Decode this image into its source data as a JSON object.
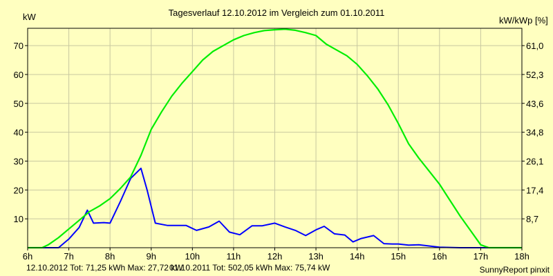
{
  "chart_data": {
    "type": "line",
    "title": "Tagesverlauf 12.10.2012 im Vergleich zum 01.10.2011",
    "ylabel_left": "kW",
    "ylabel_right": "kW/kWp [%]",
    "ylim": [
      0,
      76
    ],
    "xlim": [
      6,
      18
    ],
    "x_ticks": [
      {
        "value": 6,
        "label": "6h"
      },
      {
        "value": 7,
        "label": "7h"
      },
      {
        "value": 8,
        "label": "8h"
      },
      {
        "value": 9,
        "label": "9h"
      },
      {
        "value": 10,
        "label": "10h"
      },
      {
        "value": 11,
        "label": "11h"
      },
      {
        "value": 12,
        "label": "12h"
      },
      {
        "value": 13,
        "label": "13h"
      },
      {
        "value": 14,
        "label": "14h"
      },
      {
        "value": 15,
        "label": "15h"
      },
      {
        "value": 16,
        "label": "16h"
      },
      {
        "value": 17,
        "label": "17h"
      },
      {
        "value": 18,
        "label": "18h"
      }
    ],
    "y_ticks_left": [
      {
        "value": 10,
        "label": "10"
      },
      {
        "value": 20,
        "label": "20"
      },
      {
        "value": 30,
        "label": "30"
      },
      {
        "value": 40,
        "label": "40"
      },
      {
        "value": 50,
        "label": "50"
      },
      {
        "value": 60,
        "label": "60"
      },
      {
        "value": 70,
        "label": "70"
      }
    ],
    "y_ticks_right": [
      {
        "value": 10,
        "label": "8,7"
      },
      {
        "value": 20,
        "label": "17,4"
      },
      {
        "value": 30,
        "label": "26,1"
      },
      {
        "value": 40,
        "label": "34,8"
      },
      {
        "value": 50,
        "label": "43,6"
      },
      {
        "value": 60,
        "label": "52,3"
      },
      {
        "value": 70,
        "label": "61,0"
      }
    ],
    "series": [
      {
        "name": "12.10.2012",
        "color": "#0000ff",
        "x": [
          6,
          6.75,
          7.0,
          7.25,
          7.45,
          7.6,
          7.85,
          8.0,
          8.25,
          8.5,
          8.75,
          8.9,
          9.1,
          9.4,
          9.6,
          9.85,
          10.1,
          10.4,
          10.65,
          10.9,
          11.15,
          11.45,
          11.7,
          12.0,
          12.25,
          12.5,
          12.75,
          13.0,
          13.2,
          13.45,
          13.7,
          13.9,
          14.1,
          14.4,
          14.65,
          14.85,
          15.0,
          15.25,
          15.5,
          15.75,
          16.0,
          16.5,
          17.0,
          17.4
        ],
        "y": [
          0,
          0,
          3,
          7,
          13,
          8.5,
          8.7,
          8.5,
          16,
          24,
          27.5,
          20,
          8.5,
          7.7,
          7.7,
          7.7,
          6,
          7.2,
          9.2,
          5.4,
          4.5,
          7.6,
          7.6,
          8.5,
          7.2,
          6,
          4.2,
          6.2,
          7.4,
          4.8,
          4.4,
          2.0,
          3.2,
          4.2,
          1.4,
          1.3,
          1.3,
          0.9,
          1.0,
          0.6,
          0.2,
          0,
          0,
          0
        ]
      },
      {
        "name": "01.10.2011",
        "color": "#00ee00",
        "x": [
          6,
          6.35,
          6.5,
          6.75,
          7.0,
          7.25,
          7.5,
          7.75,
          8.0,
          8.25,
          8.5,
          8.75,
          9.0,
          9.25,
          9.5,
          9.75,
          10.0,
          10.25,
          10.5,
          10.75,
          11.0,
          11.25,
          11.5,
          11.75,
          12.0,
          12.25,
          12.5,
          12.75,
          13.0,
          13.25,
          13.5,
          13.75,
          14.0,
          14.25,
          14.5,
          14.75,
          15.0,
          15.25,
          15.5,
          15.75,
          16.0,
          16.25,
          16.5,
          16.75,
          17.0,
          17.2,
          17.4,
          17.6,
          18.0
        ],
        "y": [
          0,
          0,
          1,
          3.5,
          6.5,
          9.5,
          12.5,
          14.5,
          17,
          20.5,
          24.5,
          32,
          41,
          47,
          52.5,
          57,
          61,
          65,
          68,
          70,
          72,
          73.5,
          74.5,
          75.2,
          75.5,
          75.7,
          75.3,
          74.5,
          73.5,
          70.5,
          68.5,
          66.5,
          63.5,
          59.5,
          55,
          49.5,
          43,
          36,
          31,
          26.5,
          22,
          16.5,
          11,
          6,
          1,
          0,
          0,
          0,
          0
        ]
      }
    ],
    "legend": [
      {
        "text": "12.10.2012 Tot: 71,25 kWh Max: 27,72 kW",
        "color": "#0000ff"
      },
      {
        "text": "01.10.2011 Tot: 502,05 kWh Max: 75,74 kW",
        "color": "#00bb00"
      }
    ],
    "footer": "SunnyReport pinxit"
  },
  "colors": {
    "background": "#ffffc0",
    "plot_border": "#000000",
    "axis_text": "#000000"
  }
}
